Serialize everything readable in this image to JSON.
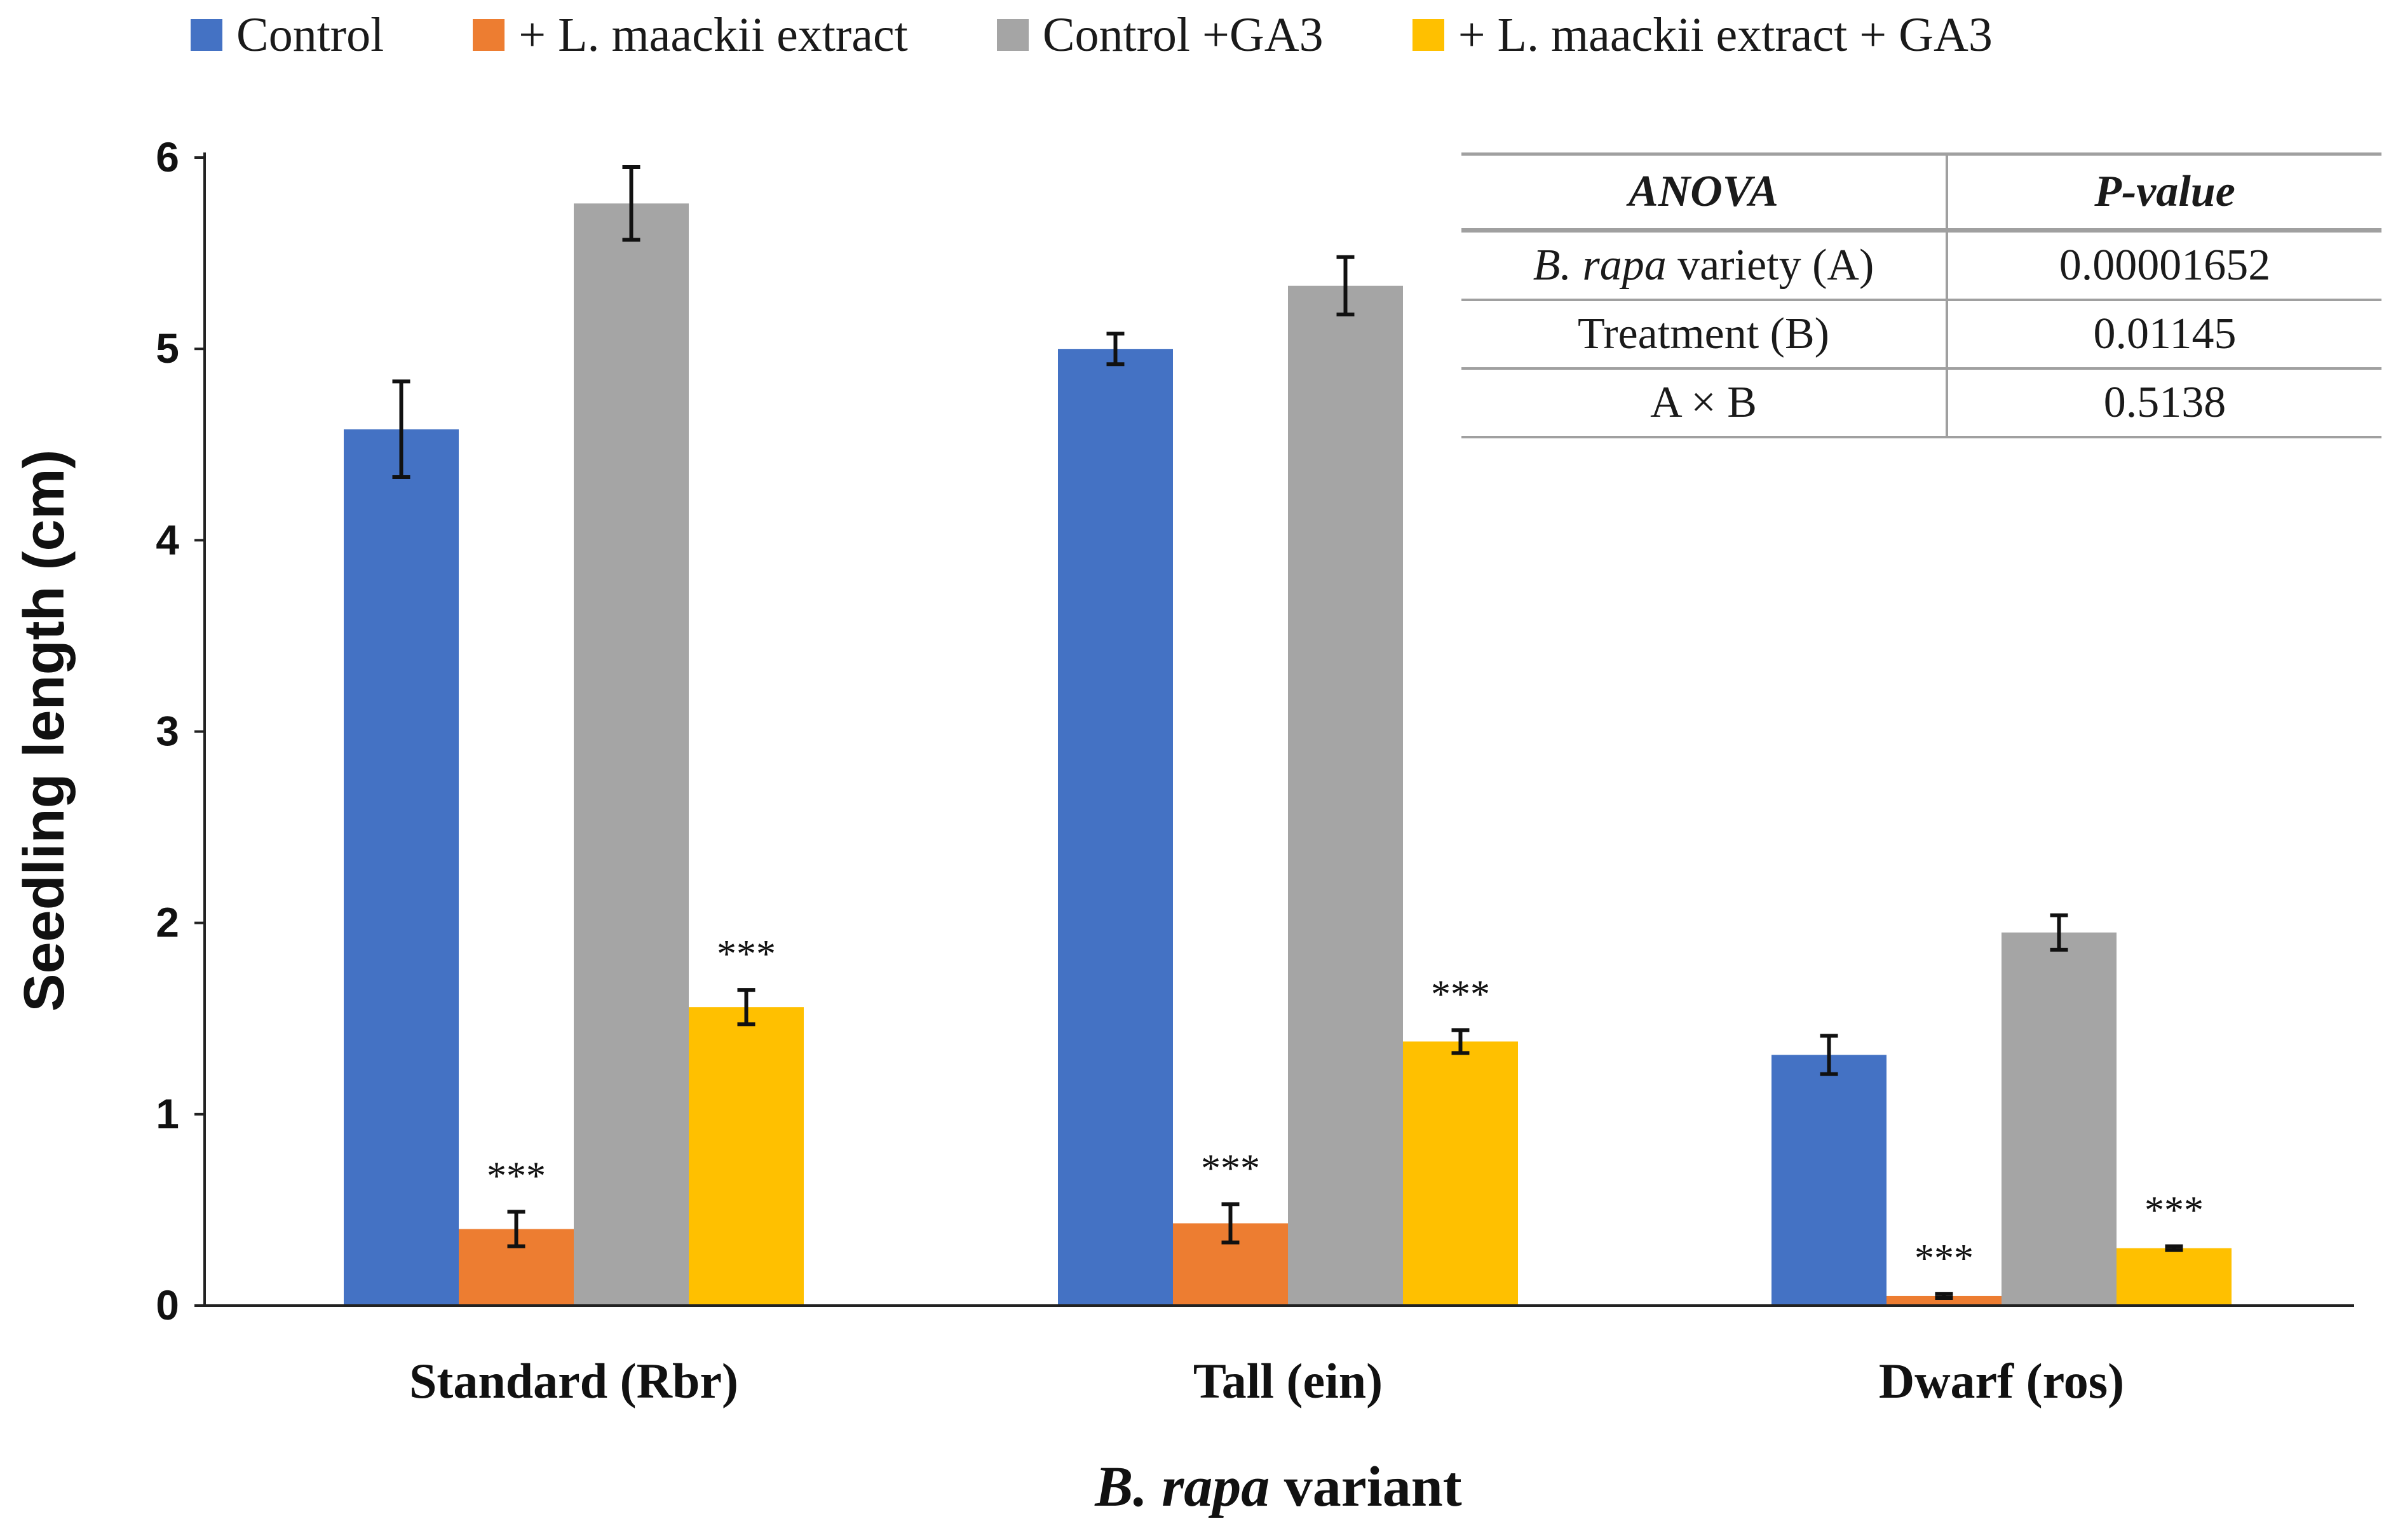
{
  "colors": {
    "Control": "#4472c4",
    "+ L. maackii extract": "#ed7d31",
    "Control +GA3": "#a5a5a5",
    "+ L. maackii extract + GA3": "#ffc000"
  },
  "legend": {
    "items": [
      "Control",
      "+ L. maackii extract",
      "Control +GA3",
      "+ L. maackii extract + GA3"
    ]
  },
  "chart_data": {
    "type": "bar",
    "title": "",
    "categories": [
      "Standard (Rbr)",
      "Tall (ein)",
      "Dwarf (ros)"
    ],
    "series": [
      {
        "name": "Control",
        "values": [
          4.58,
          5.0,
          1.31
        ],
        "errors": [
          0.25,
          0.08,
          0.1
        ],
        "sig": [
          "",
          "",
          ""
        ]
      },
      {
        "name": "+ L. maackii extract",
        "values": [
          0.4,
          0.43,
          0.05
        ],
        "errors": [
          0.09,
          0.1,
          0.01
        ],
        "sig": [
          "***",
          "***",
          "***"
        ]
      },
      {
        "name": "Control +GA3",
        "values": [
          5.76,
          5.33,
          1.95
        ],
        "errors": [
          0.19,
          0.15,
          0.09
        ],
        "sig": [
          "",
          "",
          ""
        ]
      },
      {
        "name": "+ L. maackii extract + GA3",
        "values": [
          1.56,
          1.38,
          0.3
        ],
        "errors": [
          0.09,
          0.06,
          0.01
        ],
        "sig": [
          "***",
          "***",
          "***"
        ]
      }
    ],
    "xlabel": "B. rapa variant",
    "xlabel_italic_part": "B. rapa",
    "xlabel_rest": "variant",
    "ylabel": "Seedling length (cm)",
    "ylim": [
      0,
      6
    ],
    "yticks": [
      0,
      1,
      2,
      3,
      4,
      5,
      6
    ],
    "grid": false,
    "legend_position": "top"
  },
  "anova_table": {
    "headers": [
      "ANOVA",
      "P-value"
    ],
    "rows": [
      {
        "factor_italic": "B. rapa",
        "factor_rest": "variety (A)",
        "p": "0.00001652"
      },
      {
        "factor": "Treatment (B)",
        "p": "0.01145"
      },
      {
        "factor": "A × B",
        "p": "0.5138"
      }
    ]
  }
}
